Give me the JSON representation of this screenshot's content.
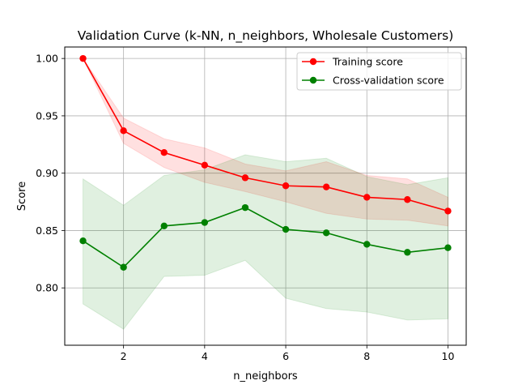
{
  "chart_data": {
    "type": "line",
    "title": "Validation Curve (k-NN, n_neighbors, Wholesale Customers)",
    "xlabel": "n_neighbors",
    "ylabel": "Score",
    "x": [
      1,
      2,
      3,
      4,
      5,
      6,
      7,
      8,
      9,
      10
    ],
    "xlim": [
      0.55,
      10.45
    ],
    "ylim": [
      0.75,
      1.01
    ],
    "x_ticks": [
      2,
      4,
      6,
      8,
      10
    ],
    "y_ticks": [
      0.8,
      0.85,
      0.9,
      0.95,
      1.0
    ],
    "x_tick_labels": [
      "2",
      "4",
      "6",
      "8",
      "10"
    ],
    "y_tick_labels": [
      "0.80",
      "0.85",
      "0.90",
      "0.95",
      "1.00"
    ],
    "grid": true,
    "legend_position": "upper right",
    "series": [
      {
        "name": "Training score",
        "color": "#ff0000",
        "marker": "circle",
        "values": [
          1.0,
          0.937,
          0.918,
          0.907,
          0.896,
          0.889,
          0.888,
          0.879,
          0.877,
          0.867
        ],
        "band_lower": [
          1.0,
          0.926,
          0.905,
          0.892,
          0.884,
          0.875,
          0.865,
          0.86,
          0.859,
          0.854
        ],
        "band_upper": [
          1.0,
          0.948,
          0.93,
          0.922,
          0.908,
          0.902,
          0.91,
          0.898,
          0.895,
          0.879
        ]
      },
      {
        "name": "Cross-validation score",
        "color": "#008000",
        "marker": "circle",
        "values": [
          0.841,
          0.818,
          0.854,
          0.857,
          0.87,
          0.851,
          0.848,
          0.838,
          0.831,
          0.835
        ],
        "band_lower": [
          0.786,
          0.764,
          0.81,
          0.811,
          0.824,
          0.791,
          0.782,
          0.779,
          0.772,
          0.773
        ],
        "band_upper": [
          0.895,
          0.872,
          0.898,
          0.903,
          0.916,
          0.91,
          0.913,
          0.897,
          0.89,
          0.896
        ]
      }
    ]
  }
}
